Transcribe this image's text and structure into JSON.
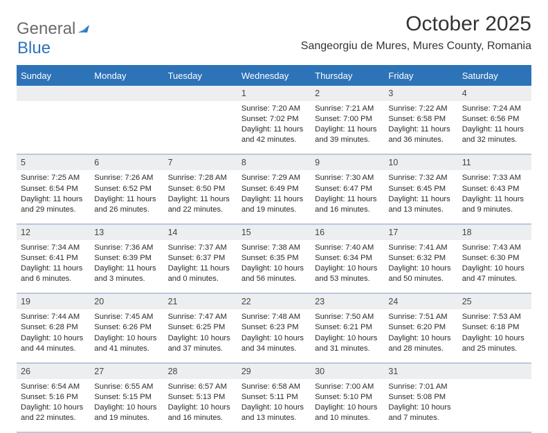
{
  "logo": {
    "text1": "General",
    "text2": "Blue",
    "color1": "#6a6a6a",
    "color2": "#2d73b8",
    "shape_color": "#2d73b8"
  },
  "title": "October 2025",
  "location": "Sangeorgiu de Mures, Mures County, Romania",
  "header_bg": "#2d73b8",
  "daynum_bg": "#eceeef",
  "rule_color": "#b8c9dc",
  "body_bg": "#ffffff",
  "text_color": "#2a2a2a",
  "day_names": [
    "Sunday",
    "Monday",
    "Tuesday",
    "Wednesday",
    "Thursday",
    "Friday",
    "Saturday"
  ],
  "weeks": [
    {
      "nums": [
        "",
        "",
        "",
        "1",
        "2",
        "3",
        "4"
      ],
      "cells": [
        "",
        "",
        "",
        "Sunrise: 7:20 AM\nSunset: 7:02 PM\nDaylight: 11 hours and 42 minutes.",
        "Sunrise: 7:21 AM\nSunset: 7:00 PM\nDaylight: 11 hours and 39 minutes.",
        "Sunrise: 7:22 AM\nSunset: 6:58 PM\nDaylight: 11 hours and 36 minutes.",
        "Sunrise: 7:24 AM\nSunset: 6:56 PM\nDaylight: 11 hours and 32 minutes."
      ]
    },
    {
      "nums": [
        "5",
        "6",
        "7",
        "8",
        "9",
        "10",
        "11"
      ],
      "cells": [
        "Sunrise: 7:25 AM\nSunset: 6:54 PM\nDaylight: 11 hours and 29 minutes.",
        "Sunrise: 7:26 AM\nSunset: 6:52 PM\nDaylight: 11 hours and 26 minutes.",
        "Sunrise: 7:28 AM\nSunset: 6:50 PM\nDaylight: 11 hours and 22 minutes.",
        "Sunrise: 7:29 AM\nSunset: 6:49 PM\nDaylight: 11 hours and 19 minutes.",
        "Sunrise: 7:30 AM\nSunset: 6:47 PM\nDaylight: 11 hours and 16 minutes.",
        "Sunrise: 7:32 AM\nSunset: 6:45 PM\nDaylight: 11 hours and 13 minutes.",
        "Sunrise: 7:33 AM\nSunset: 6:43 PM\nDaylight: 11 hours and 9 minutes."
      ]
    },
    {
      "nums": [
        "12",
        "13",
        "14",
        "15",
        "16",
        "17",
        "18"
      ],
      "cells": [
        "Sunrise: 7:34 AM\nSunset: 6:41 PM\nDaylight: 11 hours and 6 minutes.",
        "Sunrise: 7:36 AM\nSunset: 6:39 PM\nDaylight: 11 hours and 3 minutes.",
        "Sunrise: 7:37 AM\nSunset: 6:37 PM\nDaylight: 11 hours and 0 minutes.",
        "Sunrise: 7:38 AM\nSunset: 6:35 PM\nDaylight: 10 hours and 56 minutes.",
        "Sunrise: 7:40 AM\nSunset: 6:34 PM\nDaylight: 10 hours and 53 minutes.",
        "Sunrise: 7:41 AM\nSunset: 6:32 PM\nDaylight: 10 hours and 50 minutes.",
        "Sunrise: 7:43 AM\nSunset: 6:30 PM\nDaylight: 10 hours and 47 minutes."
      ]
    },
    {
      "nums": [
        "19",
        "20",
        "21",
        "22",
        "23",
        "24",
        "25"
      ],
      "cells": [
        "Sunrise: 7:44 AM\nSunset: 6:28 PM\nDaylight: 10 hours and 44 minutes.",
        "Sunrise: 7:45 AM\nSunset: 6:26 PM\nDaylight: 10 hours and 41 minutes.",
        "Sunrise: 7:47 AM\nSunset: 6:25 PM\nDaylight: 10 hours and 37 minutes.",
        "Sunrise: 7:48 AM\nSunset: 6:23 PM\nDaylight: 10 hours and 34 minutes.",
        "Sunrise: 7:50 AM\nSunset: 6:21 PM\nDaylight: 10 hours and 31 minutes.",
        "Sunrise: 7:51 AM\nSunset: 6:20 PM\nDaylight: 10 hours and 28 minutes.",
        "Sunrise: 7:53 AM\nSunset: 6:18 PM\nDaylight: 10 hours and 25 minutes."
      ]
    },
    {
      "nums": [
        "26",
        "27",
        "28",
        "29",
        "30",
        "31",
        ""
      ],
      "cells": [
        "Sunrise: 6:54 AM\nSunset: 5:16 PM\nDaylight: 10 hours and 22 minutes.",
        "Sunrise: 6:55 AM\nSunset: 5:15 PM\nDaylight: 10 hours and 19 minutes.",
        "Sunrise: 6:57 AM\nSunset: 5:13 PM\nDaylight: 10 hours and 16 minutes.",
        "Sunrise: 6:58 AM\nSunset: 5:11 PM\nDaylight: 10 hours and 13 minutes.",
        "Sunrise: 7:00 AM\nSunset: 5:10 PM\nDaylight: 10 hours and 10 minutes.",
        "Sunrise: 7:01 AM\nSunset: 5:08 PM\nDaylight: 10 hours and 7 minutes.",
        ""
      ]
    }
  ]
}
